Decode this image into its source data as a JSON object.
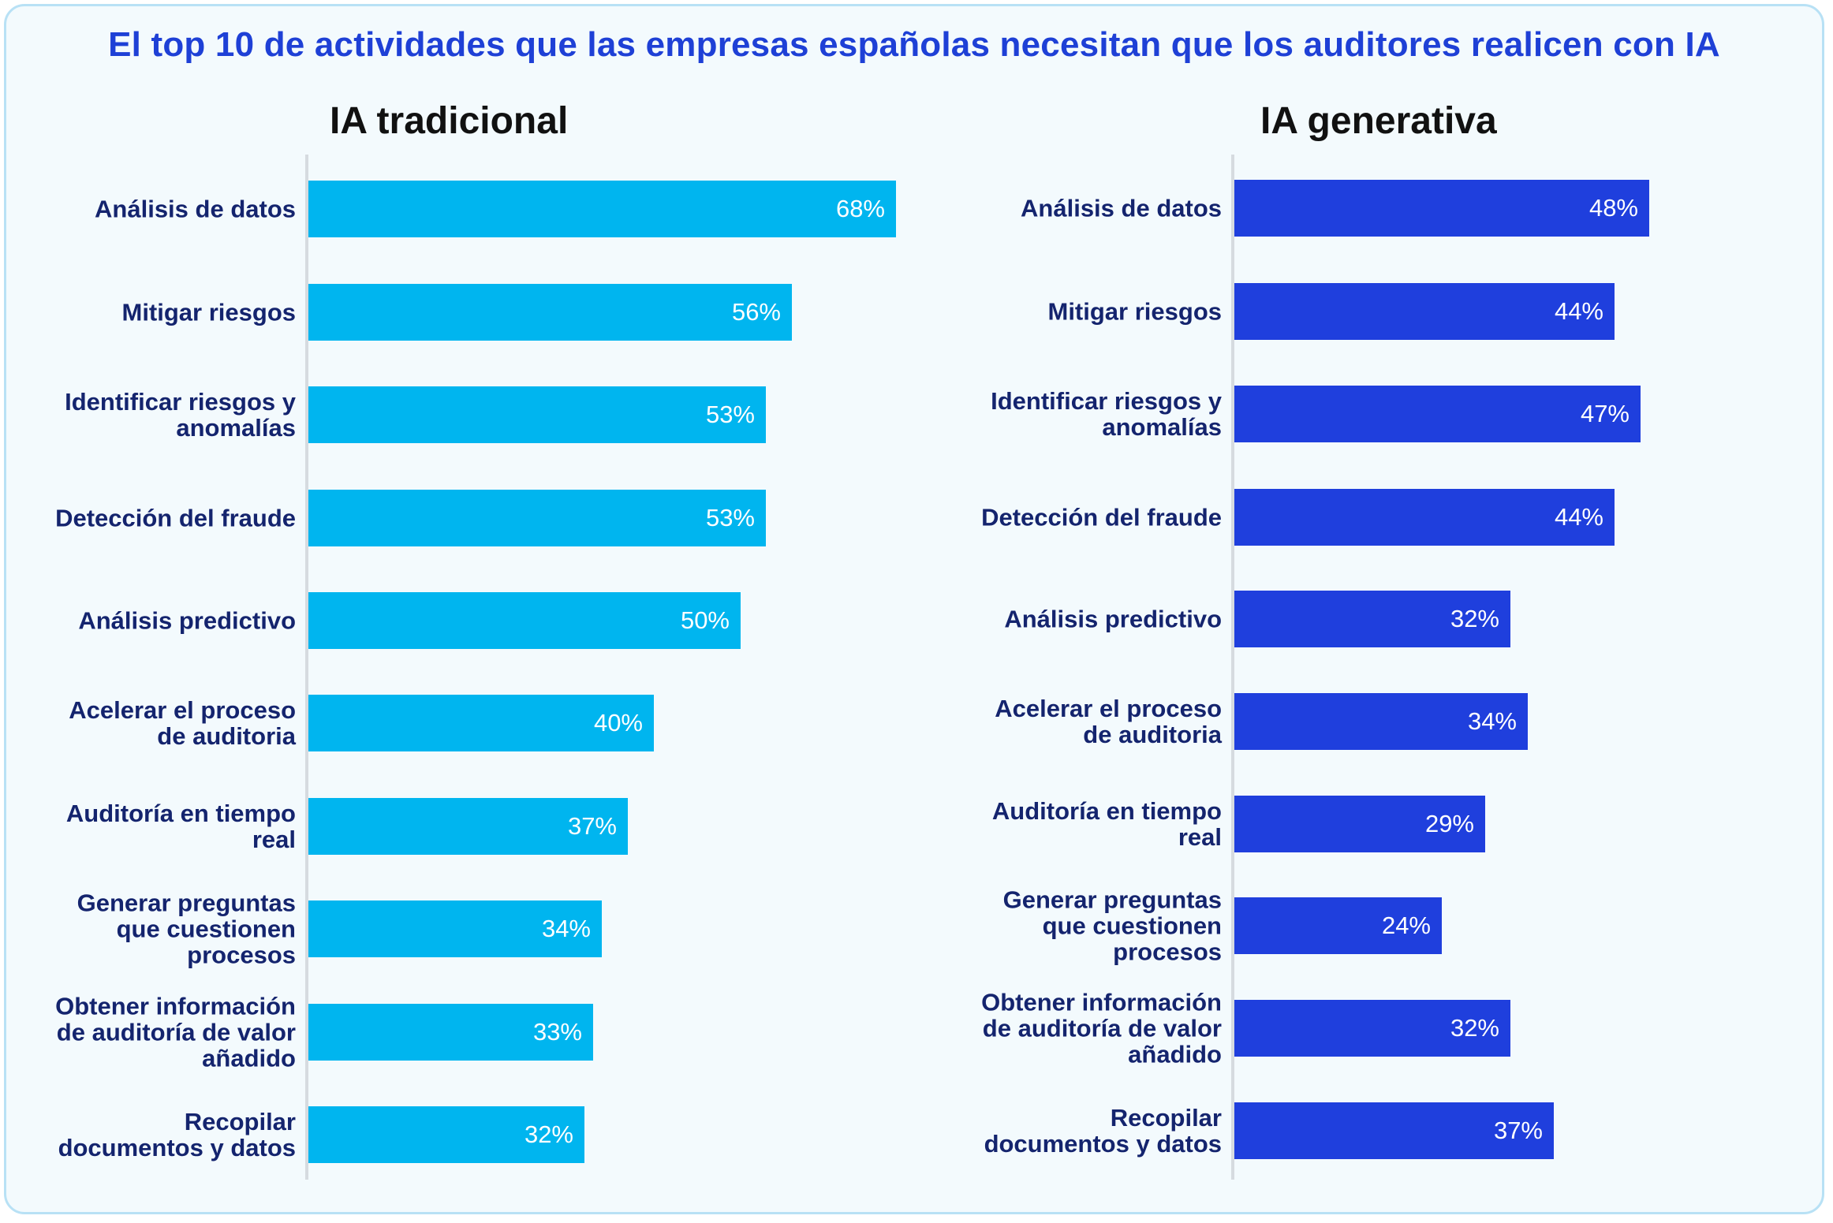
{
  "title": "El top 10 de actividades que las empresas españolas necesitan que los auditores realicen con IA",
  "colors": {
    "traditional": "#00b5ef",
    "generative": "#1f3fdd",
    "label": "#14246e",
    "title": "#1e40d6"
  },
  "chart_data": [
    {
      "type": "bar",
      "orientation": "horizontal",
      "title": "IA tradicional",
      "categories": [
        "Análisis de datos",
        "Mitigar riesgos",
        "Identificar riesgos y anomalías",
        "Detección del fraude",
        "Análisis predictivo",
        "Acelerar el proceso de auditoria",
        "Auditoría en tiempo real",
        "Generar preguntas que cuestionen procesos",
        "Obtener información de auditoría de valor añadido",
        "Recopilar documentos y datos"
      ],
      "category_lines": [
        [
          "Análisis de datos"
        ],
        [
          "Mitigar riesgos"
        ],
        [
          "Identificar riesgos y",
          "anomalías"
        ],
        [
          "Detección del fraude"
        ],
        [
          "Análisis predictivo"
        ],
        [
          "Acelerar el proceso",
          "de auditoria"
        ],
        [
          "Auditoría en tiempo",
          "real"
        ],
        [
          "Generar preguntas",
          "que cuestionen",
          "procesos"
        ],
        [
          "Obtener información",
          "de auditoría de valor",
          "añadido"
        ],
        [
          "Recopilar",
          "documentos y datos"
        ]
      ],
      "values": [
        68,
        56,
        53,
        53,
        50,
        40,
        37,
        34,
        33,
        32
      ],
      "value_labels": [
        "68%",
        "56%",
        "53%",
        "53%",
        "50%",
        "40%",
        "37%",
        "34%",
        "33%",
        "32%"
      ],
      "unit": "%",
      "xlim": [
        0,
        100
      ],
      "color": "#00b5ef",
      "grid": false
    },
    {
      "type": "bar",
      "orientation": "horizontal",
      "title": "IA generativa",
      "categories": [
        "Análisis de datos",
        "Mitigar riesgos",
        "Identificar riesgos y anomalías",
        "Detección del fraude",
        "Análisis predictivo",
        "Acelerar el proceso de auditoria",
        "Auditoría en tiempo real",
        "Generar preguntas que cuestionen procesos",
        "Obtener información de auditoría de valor añadido",
        "Recopilar documentos y datos"
      ],
      "category_lines": [
        [
          "Análisis de datos"
        ],
        [
          "Mitigar riesgos"
        ],
        [
          "Identificar riesgos y",
          "anomalías"
        ],
        [
          "Detección del fraude"
        ],
        [
          "Análisis predictivo"
        ],
        [
          "Acelerar el proceso",
          "de auditoria"
        ],
        [
          "Auditoría en tiempo",
          "real"
        ],
        [
          "Generar preguntas",
          "que cuestionen",
          "procesos"
        ],
        [
          "Obtener información",
          "de auditoría de valor",
          "añadido"
        ],
        [
          "Recopilar",
          "documentos y datos"
        ]
      ],
      "values": [
        48,
        44,
        47,
        44,
        32,
        34,
        29,
        24,
        32,
        37
      ],
      "value_labels": [
        "48%",
        "44%",
        "47%",
        "44%",
        "32%",
        "34%",
        "29%",
        "24%",
        "32%",
        "37%"
      ],
      "unit": "%",
      "xlim": [
        0,
        100
      ],
      "color": "#1f3fdd",
      "grid": false
    }
  ]
}
